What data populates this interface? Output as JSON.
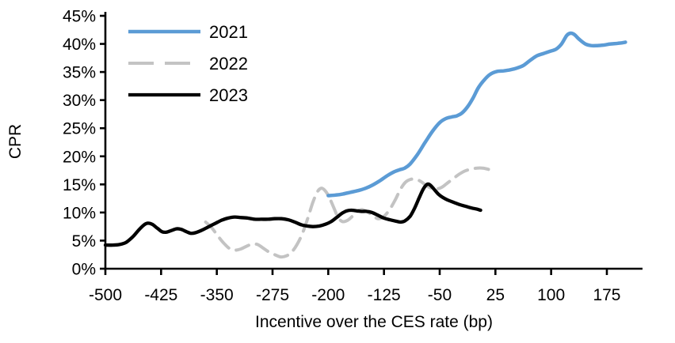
{
  "chart_data": {
    "type": "line",
    "title": "",
    "xlabel": "Incentive over the CES rate (bp)",
    "ylabel": "CPR",
    "xlim": [
      -500,
      223
    ],
    "ylim": [
      0,
      45
    ],
    "x_ticks": [
      -500,
      -425,
      -350,
      -275,
      -200,
      -125,
      -50,
      25,
      100,
      175
    ],
    "y_ticks": [
      0,
      5,
      10,
      15,
      20,
      25,
      30,
      35,
      40,
      45
    ],
    "y_tick_suffix": "%",
    "grid": false,
    "legend_position": "top-left-inside",
    "axis_color": "#000000",
    "draw_order": [
      1,
      0,
      2
    ],
    "series": [
      {
        "name": "2021",
        "color": "#5B9BD5",
        "dash": "solid",
        "width": 4.5,
        "points": [
          [
            -200,
            13.0
          ],
          [
            -190,
            13.1
          ],
          [
            -180,
            13.3
          ],
          [
            -170,
            13.6
          ],
          [
            -160,
            13.9
          ],
          [
            -150,
            14.3
          ],
          [
            -140,
            14.9
          ],
          [
            -130,
            15.7
          ],
          [
            -120,
            16.6
          ],
          [
            -112,
            17.2
          ],
          [
            -104,
            17.6
          ],
          [
            -97,
            17.9
          ],
          [
            -90,
            18.6
          ],
          [
            -80,
            20.3
          ],
          [
            -70,
            22.4
          ],
          [
            -60,
            24.4
          ],
          [
            -50,
            26.0
          ],
          [
            -42,
            26.7
          ],
          [
            -34,
            27.0
          ],
          [
            -27,
            27.2
          ],
          [
            -20,
            27.7
          ],
          [
            -12,
            28.9
          ],
          [
            -5,
            30.4
          ],
          [
            2,
            32.2
          ],
          [
            10,
            33.6
          ],
          [
            18,
            34.6
          ],
          [
            27,
            35.1
          ],
          [
            36,
            35.2
          ],
          [
            45,
            35.4
          ],
          [
            54,
            35.7
          ],
          [
            63,
            36.2
          ],
          [
            72,
            37.1
          ],
          [
            81,
            37.9
          ],
          [
            90,
            38.3
          ],
          [
            99,
            38.7
          ],
          [
            107,
            39.1
          ],
          [
            114,
            40.0
          ],
          [
            121,
            41.5
          ],
          [
            126,
            41.9
          ],
          [
            131,
            41.7
          ],
          [
            138,
            40.8
          ],
          [
            146,
            40.0
          ],
          [
            154,
            39.7
          ],
          [
            162,
            39.7
          ],
          [
            171,
            39.8
          ],
          [
            180,
            40.0
          ],
          [
            190,
            40.1
          ],
          [
            200,
            40.3
          ]
        ]
      },
      {
        "name": "2022",
        "color": "#C3C3C3",
        "dash": "dashed",
        "width": 4.0,
        "points": [
          [
            -365,
            8.3
          ],
          [
            -357,
            7.3
          ],
          [
            -349,
            5.9
          ],
          [
            -341,
            4.6
          ],
          [
            -333,
            3.6
          ],
          [
            -326,
            3.3
          ],
          [
            -318,
            3.5
          ],
          [
            -310,
            4.0
          ],
          [
            -302,
            4.4
          ],
          [
            -295,
            4.3
          ],
          [
            -288,
            3.7
          ],
          [
            -280,
            3.0
          ],
          [
            -272,
            2.5
          ],
          [
            -264,
            2.1
          ],
          [
            -256,
            2.3
          ],
          [
            -249,
            3.0
          ],
          [
            -242,
            4.3
          ],
          [
            -235,
            6.2
          ],
          [
            -228,
            8.8
          ],
          [
            -221,
            11.7
          ],
          [
            -215,
            13.6
          ],
          [
            -210,
            14.3
          ],
          [
            -205,
            14.0
          ],
          [
            -199,
            12.8
          ],
          [
            -193,
            11.0
          ],
          [
            -187,
            9.2
          ],
          [
            -181,
            8.4
          ],
          [
            -174,
            8.6
          ],
          [
            -167,
            9.4
          ],
          [
            -160,
            10.3
          ],
          [
            -154,
            10.5
          ],
          [
            -147,
            10.1
          ],
          [
            -140,
            9.4
          ],
          [
            -133,
            8.9
          ],
          [
            -126,
            9.2
          ],
          [
            -118,
            10.4
          ],
          [
            -110,
            12.2
          ],
          [
            -103,
            14.1
          ],
          [
            -96,
            15.4
          ],
          [
            -89,
            15.9
          ],
          [
            -82,
            15.9
          ],
          [
            -75,
            15.5
          ],
          [
            -68,
            14.8
          ],
          [
            -61,
            14.3
          ],
          [
            -54,
            14.2
          ],
          [
            -47,
            14.5
          ],
          [
            -40,
            15.2
          ],
          [
            -32,
            16.0
          ],
          [
            -24,
            16.8
          ],
          [
            -16,
            17.4
          ],
          [
            -8,
            17.7
          ],
          [
            0,
            17.9
          ],
          [
            8,
            17.9
          ],
          [
            15,
            17.7
          ],
          [
            22,
            17.4
          ]
        ]
      },
      {
        "name": "2023",
        "color": "#000000",
        "dash": "solid",
        "width": 4.3,
        "points": [
          [
            -500,
            4.2
          ],
          [
            -490,
            4.2
          ],
          [
            -481,
            4.3
          ],
          [
            -472,
            4.7
          ],
          [
            -463,
            5.7
          ],
          [
            -455,
            6.9
          ],
          [
            -448,
            7.8
          ],
          [
            -443,
            8.1
          ],
          [
            -437,
            7.9
          ],
          [
            -430,
            7.2
          ],
          [
            -424,
            6.6
          ],
          [
            -418,
            6.5
          ],
          [
            -411,
            6.8
          ],
          [
            -404,
            7.1
          ],
          [
            -398,
            7.0
          ],
          [
            -391,
            6.6
          ],
          [
            -385,
            6.3
          ],
          [
            -379,
            6.4
          ],
          [
            -371,
            6.8
          ],
          [
            -362,
            7.4
          ],
          [
            -353,
            8.0
          ],
          [
            -344,
            8.6
          ],
          [
            -335,
            9.0
          ],
          [
            -326,
            9.2
          ],
          [
            -317,
            9.1
          ],
          [
            -308,
            9.0
          ],
          [
            -299,
            8.8
          ],
          [
            -290,
            8.8
          ],
          [
            -281,
            8.8
          ],
          [
            -272,
            8.9
          ],
          [
            -263,
            8.9
          ],
          [
            -254,
            8.7
          ],
          [
            -245,
            8.3
          ],
          [
            -236,
            7.8
          ],
          [
            -228,
            7.6
          ],
          [
            -220,
            7.5
          ],
          [
            -212,
            7.6
          ],
          [
            -204,
            7.9
          ],
          [
            -196,
            8.4
          ],
          [
            -188,
            9.2
          ],
          [
            -181,
            9.9
          ],
          [
            -175,
            10.3
          ],
          [
            -169,
            10.4
          ],
          [
            -162,
            10.3
          ],
          [
            -155,
            10.2
          ],
          [
            -148,
            10.2
          ],
          [
            -141,
            10.0
          ],
          [
            -133,
            9.5
          ],
          [
            -125,
            9.0
          ],
          [
            -117,
            8.7
          ],
          [
            -110,
            8.5
          ],
          [
            -103,
            8.3
          ],
          [
            -97,
            8.5
          ],
          [
            -90,
            9.3
          ],
          [
            -84,
            10.7
          ],
          [
            -78,
            12.5
          ],
          [
            -72,
            14.2
          ],
          [
            -67,
            15.0
          ],
          [
            -63,
            14.9
          ],
          [
            -58,
            14.2
          ],
          [
            -52,
            13.3
          ],
          [
            -46,
            12.7
          ],
          [
            -39,
            12.2
          ],
          [
            -31,
            11.8
          ],
          [
            -23,
            11.4
          ],
          [
            -15,
            11.1
          ],
          [
            -7,
            10.8
          ],
          [
            0,
            10.6
          ],
          [
            5,
            10.4
          ]
        ]
      }
    ]
  }
}
